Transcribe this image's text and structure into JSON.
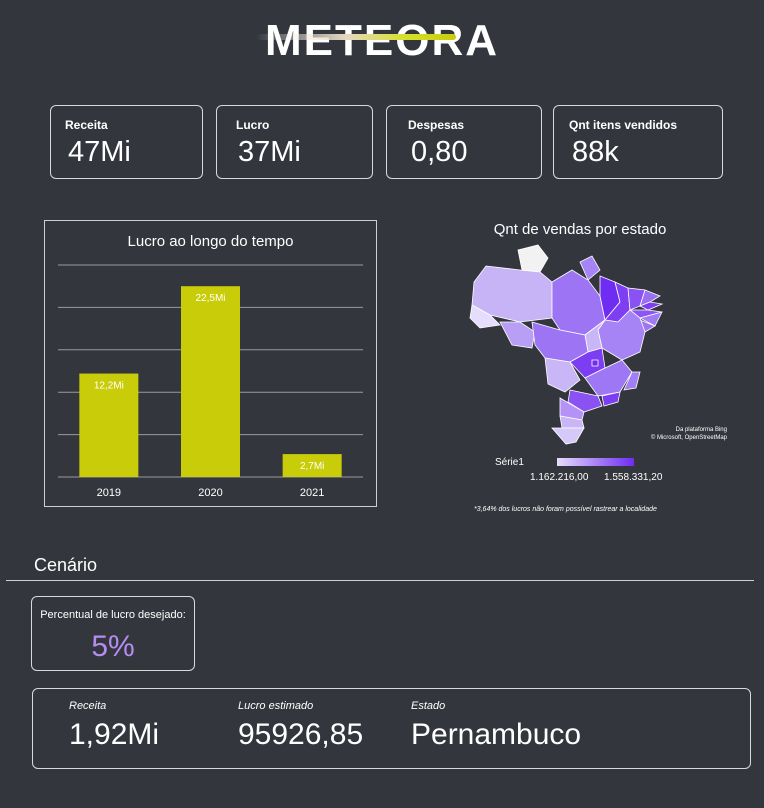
{
  "brand": {
    "logo_text": "METEORA",
    "accent": "#c9cc08"
  },
  "kpis": [
    {
      "label": "Receita",
      "value": "47Mi"
    },
    {
      "label": "Lucro",
      "value": "37Mi"
    },
    {
      "label": "Despesas",
      "value": "0,80"
    },
    {
      "label": "Qnt itens vendidos",
      "value": "88k"
    }
  ],
  "chart_data": {
    "type": "bar",
    "title": "Lucro ao longo do tempo",
    "categories": [
      "2019",
      "2020",
      "2021"
    ],
    "values": [
      12.2,
      22.5,
      2.7
    ],
    "data_labels": [
      "12,2Mi",
      "22,5Mi",
      "2,7Mi"
    ],
    "ylim": [
      0,
      25
    ],
    "grid": true,
    "color": "#c9cc08"
  },
  "map": {
    "title": "Qnt de vendas por estado",
    "credit_line1": "Da plataforma Bing",
    "credit_line2": "© Microsoft, OpenStreetMap",
    "legend_series": "Série1",
    "legend_min": "1.162.216,00",
    "legend_max": "1.558.331,20",
    "footnote": "*3,64% dos lucros não foram possível rastrear a localidade",
    "color_low": "#e6dcfb",
    "color_high": "#6f2cf2"
  },
  "scenario": {
    "title": "Cenário",
    "pct_label": "Percentual de lucro desejado:",
    "pct_value": "5%",
    "receita_label": "Receita",
    "receita_value": "1,92Mi",
    "lucro_label": "Lucro estimado",
    "lucro_value": "95926,85",
    "estado_label": "Estado",
    "estado_value": "Pernambuco"
  }
}
